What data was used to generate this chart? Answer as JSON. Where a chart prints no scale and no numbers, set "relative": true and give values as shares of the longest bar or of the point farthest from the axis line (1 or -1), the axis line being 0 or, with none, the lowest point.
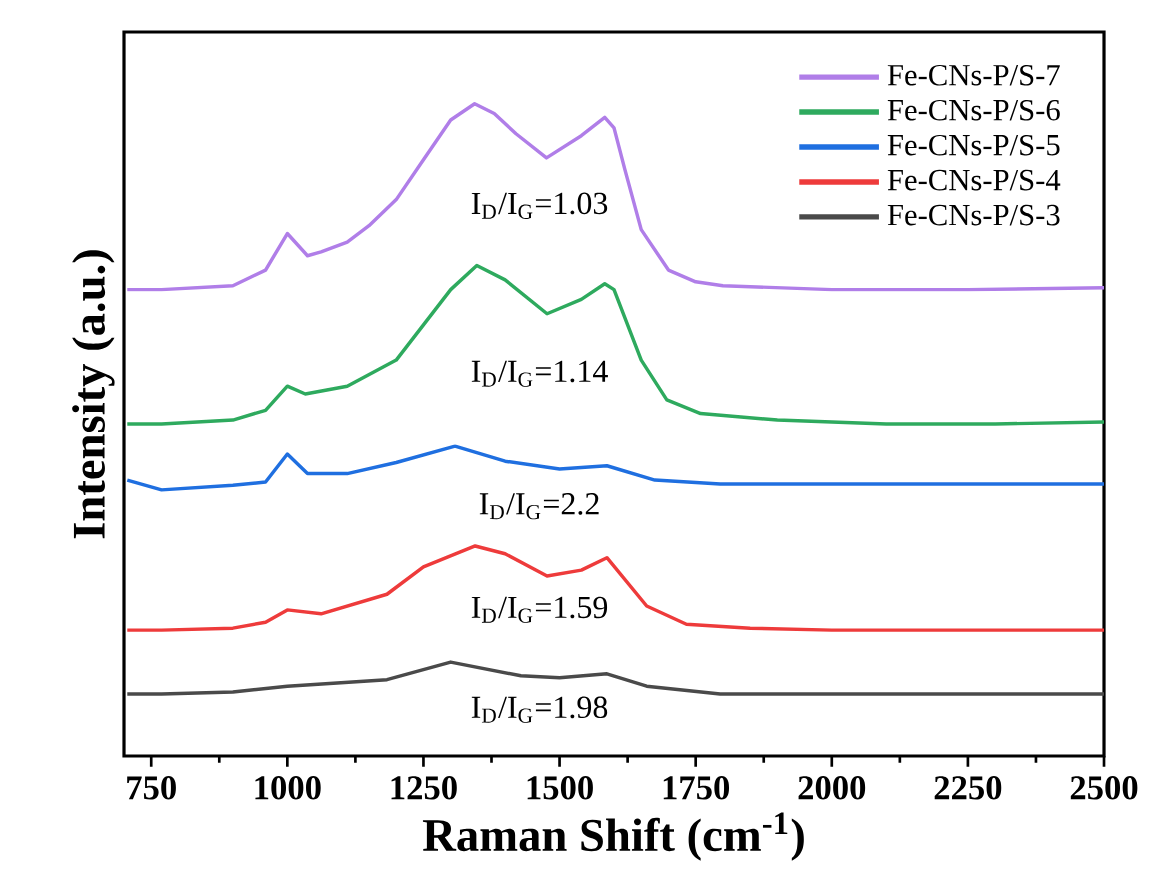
{
  "chart_data": {
    "type": "line",
    "relative": true,
    "xlabel": "Raman Shift (cm$^{-1}$)",
    "ylabel": "Intensity (a.u.)",
    "xlim": [
      700,
      2500
    ],
    "xticks": [
      750,
      1000,
      1250,
      1500,
      1750,
      2000,
      2250,
      2500
    ],
    "legend": "top right",
    "series": [
      {
        "name": "Fe-CNs-P/S-7",
        "color": "#b07ee8",
        "x": [
          706,
          769,
          900,
          960,
          1000,
          1037,
          1062,
          1110,
          1150,
          1200,
          1250,
          1300,
          1344,
          1380,
          1420,
          1476,
          1540,
          1583,
          1600,
          1620,
          1650,
          1700,
          1750,
          1800,
          2000,
          2250,
          2500
        ],
        "values": [
          0.715,
          0.715,
          0.721,
          0.745,
          0.801,
          0.767,
          0.773,
          0.788,
          0.813,
          0.853,
          0.914,
          0.975,
          1.0,
          0.985,
          0.954,
          0.917,
          0.951,
          0.979,
          0.963,
          0.899,
          0.807,
          0.745,
          0.727,
          0.721,
          0.715,
          0.715,
          0.718
        ]
      },
      {
        "name": "Fe-CNs-P/S-6",
        "color": "#2eaa5e",
        "x": [
          706,
          769,
          900,
          960,
          1000,
          1033,
          1110,
          1200,
          1300,
          1348,
          1400,
          1477,
          1540,
          1583,
          1600,
          1650,
          1697,
          1759,
          1900,
          2100,
          2300,
          2500
        ],
        "values": [
          0.509,
          0.509,
          0.515,
          0.53,
          0.567,
          0.555,
          0.567,
          0.607,
          0.715,
          0.752,
          0.73,
          0.678,
          0.7,
          0.724,
          0.715,
          0.607,
          0.546,
          0.525,
          0.515,
          0.509,
          0.509,
          0.512
        ]
      },
      {
        "name": "Fe-CNs-P/S-5",
        "color": "#1f6fe0",
        "x": [
          706,
          769,
          900,
          960,
          1000,
          1037,
          1110,
          1200,
          1308,
          1400,
          1500,
          1587,
          1675,
          1795,
          2000,
          2250,
          2500
        ],
        "values": [
          0.423,
          0.408,
          0.415,
          0.42,
          0.463,
          0.433,
          0.433,
          0.45,
          0.475,
          0.452,
          0.44,
          0.445,
          0.423,
          0.417,
          0.417,
          0.417,
          0.417
        ]
      },
      {
        "name": "Fe-CNs-P/S-4",
        "color": "#ee3b3b",
        "x": [
          706,
          769,
          900,
          960,
          1000,
          1062,
          1183,
          1250,
          1345,
          1400,
          1477,
          1540,
          1587,
          1660,
          1733,
          1850,
          2000,
          2250,
          2500
        ],
        "values": [
          0.193,
          0.193,
          0.196,
          0.205,
          0.224,
          0.218,
          0.248,
          0.29,
          0.322,
          0.31,
          0.276,
          0.285,
          0.304,
          0.23,
          0.202,
          0.196,
          0.193,
          0.193,
          0.193
        ]
      },
      {
        "name": "Fe-CNs-P/S-3",
        "color": "#4a4a4a",
        "x": [
          706,
          769,
          900,
          1000,
          1183,
          1300,
          1429,
          1500,
          1587,
          1660,
          1795,
          2000,
          2250,
          2500
        ],
        "values": [
          0.095,
          0.095,
          0.098,
          0.107,
          0.117,
          0.144,
          0.123,
          0.12,
          0.126,
          0.107,
          0.095,
          0.095,
          0.095,
          0.095
        ]
      }
    ],
    "annotations": [
      "I$_{D}$/I$_{G}$=1.03",
      "I$_{D}$/I$_{G}$=1.14",
      "I$_{D}$/I$_{G}$=2.2",
      "I$_{D}$/I$_{G}$=1.59",
      "I$_{D}$/I$_{G}$=1.98"
    ]
  }
}
